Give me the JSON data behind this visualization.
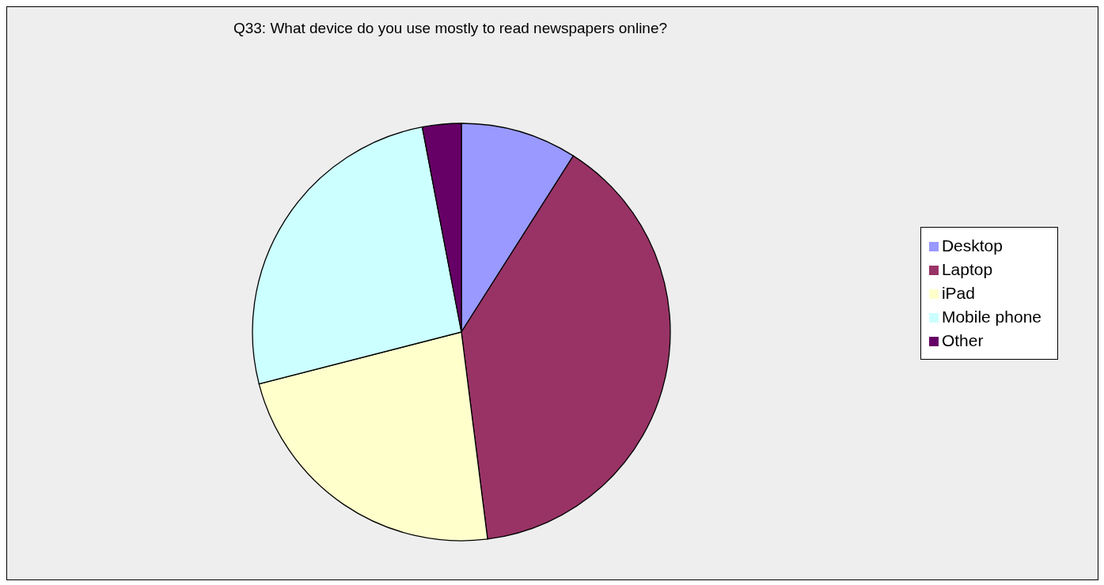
{
  "chart_data": {
    "type": "pie",
    "title": "Q33: What device do you use mostly to read newspapers online?",
    "categories": [
      "Desktop",
      "Laptop",
      "iPad",
      "Mobile phone",
      "Other"
    ],
    "values": [
      9,
      39,
      23,
      26,
      3
    ],
    "colors": [
      "#9999ff",
      "#993366",
      "#ffffcc",
      "#ccffff",
      "#660066"
    ],
    "legend": "right"
  }
}
